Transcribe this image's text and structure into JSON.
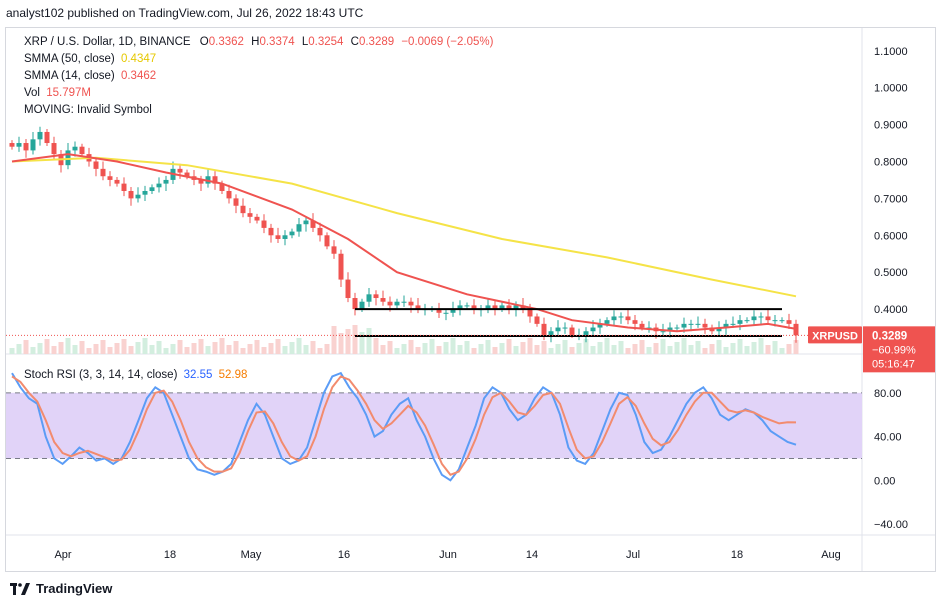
{
  "publish_line": "analyst102 published on TradingView.com, Jul 26, 2022 18:43 UTC",
  "footer": {
    "brand": "TradingView"
  },
  "colors": {
    "up": "#26a69a",
    "down": "#ef5350",
    "sma50": "#f5e347",
    "sma14": "#ef5350",
    "stoch_k": "#5b9cf6",
    "stoch_d": "#f28b6e",
    "rsi_band": "#e1d3f8",
    "volume_up": "#d3eedf",
    "volume_down": "#f9d2d0",
    "badge": "#ef5350"
  },
  "legend": {
    "symbol": "XRP / U.S. Dollar, 1D, BINANCE",
    "o_label": "O",
    "o": "0.3362",
    "h_label": "H",
    "h": "0.3374",
    "l_label": "L",
    "l": "0.3254",
    "c_label": "C",
    "c": "0.3289",
    "change": "−0.0069 (−2.05%)",
    "sma50_label": "SMMA (50, close)",
    "sma50": "0.4347",
    "sma14_label": "SMMA (14, close)",
    "sma14": "0.3462",
    "vol_label": "Vol",
    "vol": "15.797M",
    "moving": "MOVING: Invalid Symbol"
  },
  "stoch_legend": {
    "label": "Stoch RSI (3, 3, 14, 14, close)",
    "k": "32.55",
    "d": "52.98"
  },
  "badges": {
    "symbol": "XRPUSD",
    "price": "0.3289",
    "pct": "−60.99%",
    "countdown": "05:16:47"
  },
  "chart_data": [
    {
      "type": "candlestick",
      "title": "XRP / U.S. Dollar, 1D, BINANCE",
      "y_ticks": [
        "1.1000",
        "1.0000",
        "0.9000",
        "0.8000",
        "0.7000",
        "0.6000",
        "0.5000",
        "0.4000"
      ],
      "ylim": [
        0.3,
        1.14
      ],
      "x_ticks": [
        "Apr",
        "18",
        "May",
        "16",
        "Jun",
        "14",
        "Jul",
        "18",
        "Aug"
      ],
      "close_series": [
        0.84,
        0.85,
        0.83,
        0.86,
        0.88,
        0.85,
        0.82,
        0.79,
        0.83,
        0.84,
        0.82,
        0.8,
        0.78,
        0.76,
        0.75,
        0.74,
        0.72,
        0.7,
        0.71,
        0.72,
        0.73,
        0.74,
        0.75,
        0.78,
        0.77,
        0.76,
        0.75,
        0.74,
        0.76,
        0.74,
        0.72,
        0.7,
        0.68,
        0.66,
        0.65,
        0.64,
        0.62,
        0.6,
        0.59,
        0.6,
        0.61,
        0.63,
        0.64,
        0.62,
        0.6,
        0.57,
        0.55,
        0.48,
        0.43,
        0.4,
        0.42,
        0.44,
        0.43,
        0.42,
        0.41,
        0.42,
        0.42,
        0.41,
        0.4,
        0.4,
        0.4,
        0.39,
        0.39,
        0.4,
        0.41,
        0.41,
        0.4,
        0.4,
        0.41,
        0.4,
        0.41,
        0.4,
        0.41,
        0.4,
        0.38,
        0.36,
        0.33,
        0.34,
        0.35,
        0.35,
        0.33,
        0.33,
        0.34,
        0.35,
        0.36,
        0.37,
        0.38,
        0.38,
        0.37,
        0.36,
        0.35,
        0.35,
        0.34,
        0.34,
        0.35,
        0.35,
        0.36,
        0.36,
        0.36,
        0.35,
        0.34,
        0.35,
        0.36,
        0.36,
        0.37,
        0.37,
        0.38,
        0.38,
        0.37,
        0.37,
        0.37,
        0.36,
        0.3289
      ],
      "series": [
        {
          "name": "SMMA (50, close)",
          "points": [
            [
              0,
              0.8
            ],
            [
              12,
              0.81
            ],
            [
              25,
              0.79
            ],
            [
              40,
              0.74
            ],
            [
              55,
              0.66
            ],
            [
              70,
              0.59
            ],
            [
              85,
              0.54
            ],
            [
              100,
              0.48
            ],
            [
              112,
              0.4347
            ]
          ]
        },
        {
          "name": "SMMA (14, close)",
          "points": [
            [
              0,
              0.8
            ],
            [
              8,
              0.82
            ],
            [
              15,
              0.8
            ],
            [
              22,
              0.77
            ],
            [
              30,
              0.74
            ],
            [
              40,
              0.67
            ],
            [
              48,
              0.59
            ],
            [
              55,
              0.5
            ],
            [
              65,
              0.44
            ],
            [
              75,
              0.4
            ],
            [
              80,
              0.37
            ],
            [
              88,
              0.35
            ],
            [
              95,
              0.34
            ],
            [
              102,
              0.35
            ],
            [
              108,
              0.36
            ],
            [
              112,
              0.3462
            ]
          ]
        }
      ],
      "support_line": 0.327,
      "resistance_line": 0.4,
      "last_price": 0.3289
    },
    {
      "type": "line",
      "title": "Stoch RSI (3, 3, 14, 14, close)",
      "y_ticks": [
        "80.00",
        "40.00",
        "0.00",
        "−40.00"
      ],
      "ylim": [
        -50,
        110
      ],
      "band": [
        20,
        80
      ],
      "series": [
        {
          "name": "K",
          "values": [
            98,
            85,
            75,
            70,
            40,
            20,
            15,
            22,
            30,
            25,
            18,
            20,
            15,
            20,
            35,
            55,
            75,
            85,
            80,
            60,
            40,
            20,
            10,
            8,
            5,
            8,
            15,
            35,
            55,
            70,
            60,
            40,
            20,
            15,
            18,
            30,
            55,
            80,
            95,
            98,
            85,
            75,
            60,
            40,
            45,
            60,
            70,
            75,
            55,
            40,
            20,
            5,
            0,
            10,
            30,
            50,
            75,
            85,
            80,
            65,
            55,
            60,
            75,
            85,
            80,
            60,
            30,
            18,
            15,
            25,
            45,
            65,
            80,
            78,
            60,
            35,
            25,
            28,
            40,
            55,
            70,
            80,
            85,
            75,
            60,
            55,
            60,
            65,
            62,
            55,
            45,
            40,
            35,
            32.55
          ]
        },
        {
          "name": "D",
          "values": [
            95,
            90,
            80,
            72,
            55,
            35,
            25,
            22,
            25,
            27,
            24,
            21,
            18,
            19,
            28,
            45,
            65,
            80,
            82,
            72,
            55,
            35,
            20,
            12,
            8,
            8,
            11,
            25,
            45,
            62,
            63,
            52,
            35,
            22,
            18,
            22,
            40,
            65,
            85,
            95,
            92,
            82,
            70,
            55,
            47,
            52,
            60,
            68,
            62,
            50,
            33,
            15,
            5,
            8,
            20,
            38,
            60,
            76,
            80,
            72,
            62,
            60,
            68,
            78,
            80,
            70,
            48,
            28,
            20,
            22,
            35,
            52,
            70,
            76,
            68,
            52,
            38,
            32,
            35,
            46,
            60,
            72,
            80,
            80,
            72,
            64,
            62,
            64,
            62,
            58,
            55,
            52,
            53,
            52.98
          ]
        }
      ]
    }
  ]
}
